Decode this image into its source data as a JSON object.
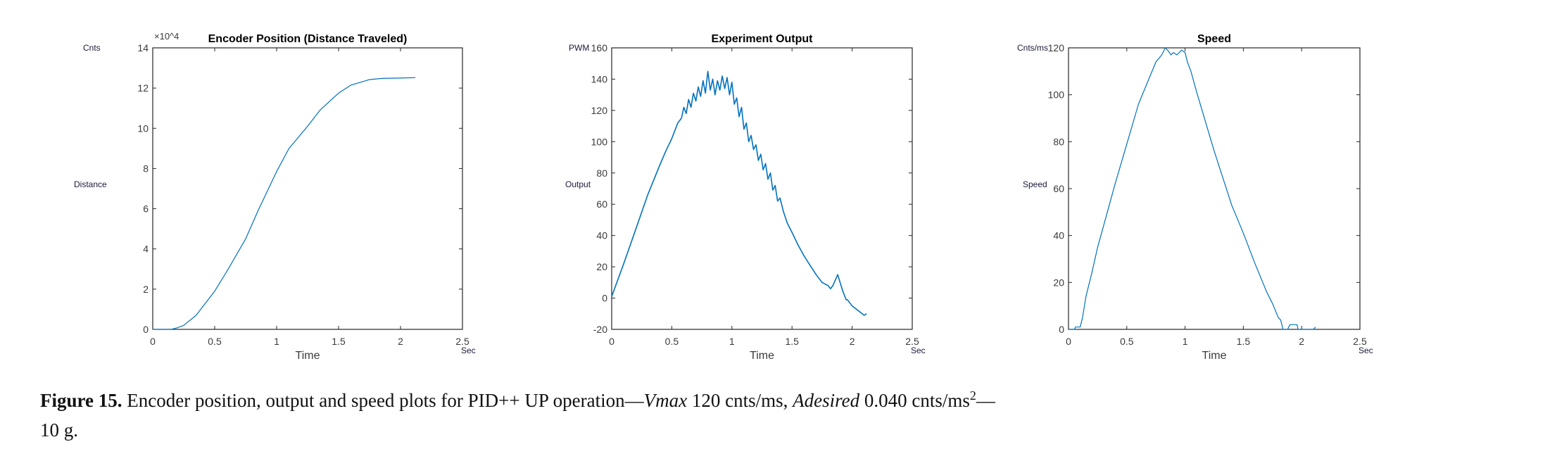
{
  "chart_data": [
    {
      "type": "line",
      "title": "Encoder Position (Distance Traveled)",
      "xlabel": "Time",
      "xunit": "Sec",
      "ylabel": "Distance",
      "yunit": "Cnts",
      "y_multiplier": "×10^4",
      "xlim": [
        0,
        2.5
      ],
      "ylim": [
        0,
        14
      ],
      "xticks": [
        "0",
        "0.5",
        "1",
        "1.5",
        "2",
        "2.5"
      ],
      "yticks": [
        "0",
        "2",
        "4",
        "6",
        "8",
        "10",
        "12",
        "14"
      ],
      "grid": false,
      "color": "#0072BD",
      "x": [
        0,
        0.15,
        0.2,
        0.25,
        0.35,
        0.5,
        0.6,
        0.75,
        0.85,
        1.0,
        1.1,
        1.25,
        1.35,
        1.5,
        1.6,
        1.75,
        1.85,
        2.0,
        2.12
      ],
      "y": [
        0,
        0,
        0.08,
        0.2,
        0.7,
        1.9,
        2.9,
        4.5,
        5.9,
        7.85,
        9.0,
        10.1,
        10.9,
        11.75,
        12.15,
        12.42,
        12.48,
        12.5,
        12.52
      ]
    },
    {
      "type": "line",
      "title": "Experiment Output",
      "xlabel": "Time",
      "xunit": "Sec",
      "ylabel": "Output",
      "yunit": "PWM",
      "xlim": [
        0,
        2.5
      ],
      "ylim": [
        -20,
        160
      ],
      "xticks": [
        "0",
        "0.5",
        "1",
        "1.5",
        "2",
        "2.5"
      ],
      "yticks": [
        "-20",
        "0",
        "20",
        "40",
        "60",
        "80",
        "100",
        "120",
        "140",
        "160"
      ],
      "grid": false,
      "color": "#0072BD",
      "x": [
        0,
        0.1,
        0.2,
        0.3,
        0.4,
        0.45,
        0.5,
        0.55,
        0.58,
        0.6,
        0.62,
        0.64,
        0.66,
        0.68,
        0.7,
        0.72,
        0.74,
        0.76,
        0.78,
        0.8,
        0.82,
        0.84,
        0.86,
        0.88,
        0.9,
        0.92,
        0.94,
        0.96,
        0.98,
        1.0,
        1.02,
        1.04,
        1.06,
        1.08,
        1.1,
        1.12,
        1.14,
        1.16,
        1.18,
        1.2,
        1.22,
        1.24,
        1.26,
        1.28,
        1.3,
        1.32,
        1.34,
        1.36,
        1.38,
        1.4,
        1.43,
        1.46,
        1.5,
        1.55,
        1.6,
        1.65,
        1.7,
        1.75,
        1.8,
        1.82,
        1.84,
        1.88,
        1.92,
        1.95,
        1.96,
        2.0,
        2.05,
        2.1,
        2.12
      ],
      "y": [
        1,
        22,
        44,
        66,
        85,
        94,
        102,
        112,
        115,
        122,
        118,
        127,
        122,
        131,
        126,
        135,
        129,
        139,
        131,
        145,
        133,
        140,
        130,
        139,
        133,
        142,
        134,
        141,
        130,
        138,
        124,
        128,
        116,
        122,
        108,
        112,
        100,
        104,
        95,
        98,
        88,
        92,
        82,
        86,
        76,
        80,
        69,
        72,
        62,
        64,
        55,
        48,
        42,
        34,
        27,
        21,
        15,
        10,
        8,
        6,
        8,
        15,
        5,
        -1,
        -1,
        -5,
        -8,
        -11,
        -10
      ]
    },
    {
      "type": "line",
      "title": "Speed",
      "xlabel": "Time",
      "xunit": "Sec",
      "ylabel": "Speed",
      "yunit": "Cnts/ms",
      "xlim": [
        0,
        2.5
      ],
      "ylim": [
        0,
        120
      ],
      "xticks": [
        "0",
        "0.5",
        "1",
        "1.5",
        "2",
        "2.5"
      ],
      "yticks": [
        "0",
        "20",
        "40",
        "60",
        "80",
        "100",
        "120"
      ],
      "grid": false,
      "color": "#0072BD",
      "x": [
        0,
        0.05,
        0.06,
        0.07,
        0.1,
        0.12,
        0.15,
        0.2,
        0.25,
        0.3,
        0.4,
        0.5,
        0.6,
        0.7,
        0.75,
        0.8,
        0.83,
        0.85,
        0.88,
        0.9,
        0.93,
        0.97,
        1.0,
        1.02,
        1.05,
        1.1,
        1.25,
        1.4,
        1.5,
        1.6,
        1.7,
        1.75,
        1.8,
        1.82,
        1.84,
        1.88,
        1.9,
        1.96,
        1.97,
        2.1,
        2.12
      ],
      "y": [
        0,
        0,
        1,
        1,
        1,
        5,
        14,
        24,
        35,
        44,
        62,
        79,
        96,
        108,
        114,
        117,
        120,
        119,
        117,
        118,
        117,
        119,
        118,
        114,
        110,
        101,
        76,
        53,
        41,
        28,
        16,
        11,
        5,
        4,
        0,
        0,
        2,
        2,
        0,
        0,
        1
      ]
    }
  ],
  "caption": {
    "label": "Figure 15.",
    "text1": " Encoder position, output and speed plots for PID++ UP operation—",
    "vmax": "Vmax",
    "text2": " 120 cnts/ms, ",
    "adesired": "Adesired",
    "text3": " 0.040 cnts/ms",
    "sup": "2",
    "text4": "—",
    "text5": "10 g."
  }
}
